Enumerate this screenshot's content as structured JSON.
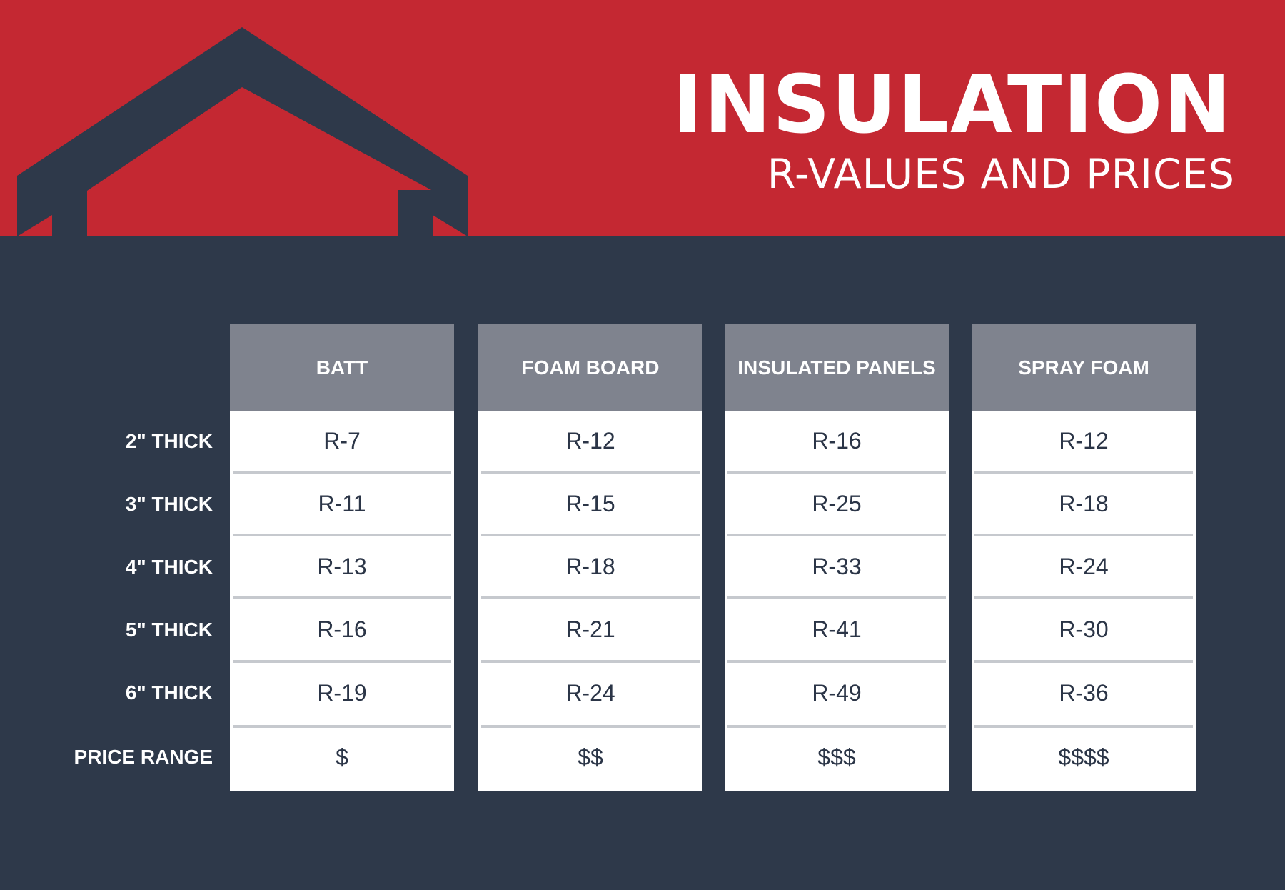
{
  "header": {
    "title": "INSULATION",
    "subtitle": "R-VALUES AND PRICES"
  },
  "colors": {
    "banner_red": "#c42832",
    "navy": "#2e394a",
    "header_gray": "#7f838e",
    "cell_white": "#ffffff",
    "divider_gray": "#c6c9ce",
    "value_text": "#2b3547"
  },
  "house_icon": "house-roof-icon",
  "table": {
    "row_labels": [
      "2\" THICK",
      "3\" THICK",
      "4\" THICK",
      "5\" THICK",
      "6\" THICK",
      "PRICE RANGE"
    ],
    "columns": [
      {
        "header": "BATT",
        "values": [
          "R-7",
          "R-11",
          "R-13",
          "R-16",
          "R-19",
          "$"
        ]
      },
      {
        "header": "FOAM BOARD",
        "values": [
          "R-12",
          "R-15",
          "R-18",
          "R-21",
          "R-24",
          "$$"
        ]
      },
      {
        "header": "INSULATED PANELS",
        "values": [
          "R-16",
          "R-25",
          "R-33",
          "R-41",
          "R-49",
          "$$$"
        ]
      },
      {
        "header": "SPRAY FOAM",
        "values": [
          "R-12",
          "R-18",
          "R-24",
          "R-30",
          "R-36",
          "$$$$"
        ]
      }
    ]
  }
}
